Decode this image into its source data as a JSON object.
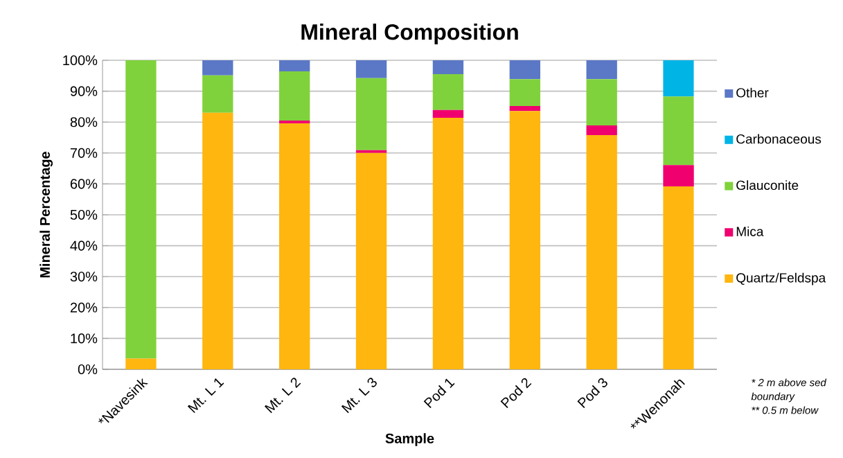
{
  "chart_data": {
    "type": "bar",
    "stacked": true,
    "title": "Mineral Composition",
    "xlabel": "Sample",
    "ylabel": "Mineral Percentage",
    "categories": [
      "*Navesink",
      "Mt. L 1",
      "Mt. L 2",
      "Mt. L 3",
      "Pod 1",
      "Pod 2",
      "Pod 3",
      "**Wenonah"
    ],
    "series": [
      {
        "name": "Quartz/Feldspa",
        "color": "#ffb60f",
        "values": [
          3.5,
          83.0,
          79.6,
          70.0,
          81.4,
          83.6,
          75.8,
          59.2
        ]
      },
      {
        "name": "Mica",
        "color": "#f0006f",
        "values": [
          0,
          0,
          0.9,
          0.9,
          2.5,
          1.6,
          3.1,
          6.9
        ]
      },
      {
        "name": "Glauconite",
        "color": "#80d23c",
        "values": [
          96.5,
          12.1,
          15.9,
          23.3,
          11.6,
          8.7,
          15.0,
          22.2
        ]
      },
      {
        "name": "Carbonaceous",
        "color": "#00b4e6",
        "values": [
          0,
          0,
          0,
          0,
          0,
          0,
          0,
          11.7
        ]
      },
      {
        "name": "Other",
        "color": "#5b78c6",
        "values": [
          0,
          4.9,
          3.6,
          5.8,
          4.5,
          6.1,
          6.1,
          0
        ]
      }
    ],
    "ylim": [
      0,
      100
    ],
    "yticks": [
      {
        "value": 0,
        "label": "0%"
      },
      {
        "value": 10,
        "label": "10%"
      },
      {
        "value": 20,
        "label": "20%"
      },
      {
        "value": 30,
        "label": "30%"
      },
      {
        "value": 40,
        "label": "40%"
      },
      {
        "value": 50,
        "label": "50%"
      },
      {
        "value": 60,
        "label": "60%"
      },
      {
        "value": 70,
        "label": "70%"
      },
      {
        "value": 80,
        "label": "80%"
      },
      {
        "value": 90,
        "label": "90%"
      },
      {
        "value": 100,
        "label": "100%"
      }
    ],
    "grid": "y",
    "legend": "right",
    "annotations": [
      "* 2 m above sed",
      "boundary",
      "** 0.5 m below"
    ]
  }
}
